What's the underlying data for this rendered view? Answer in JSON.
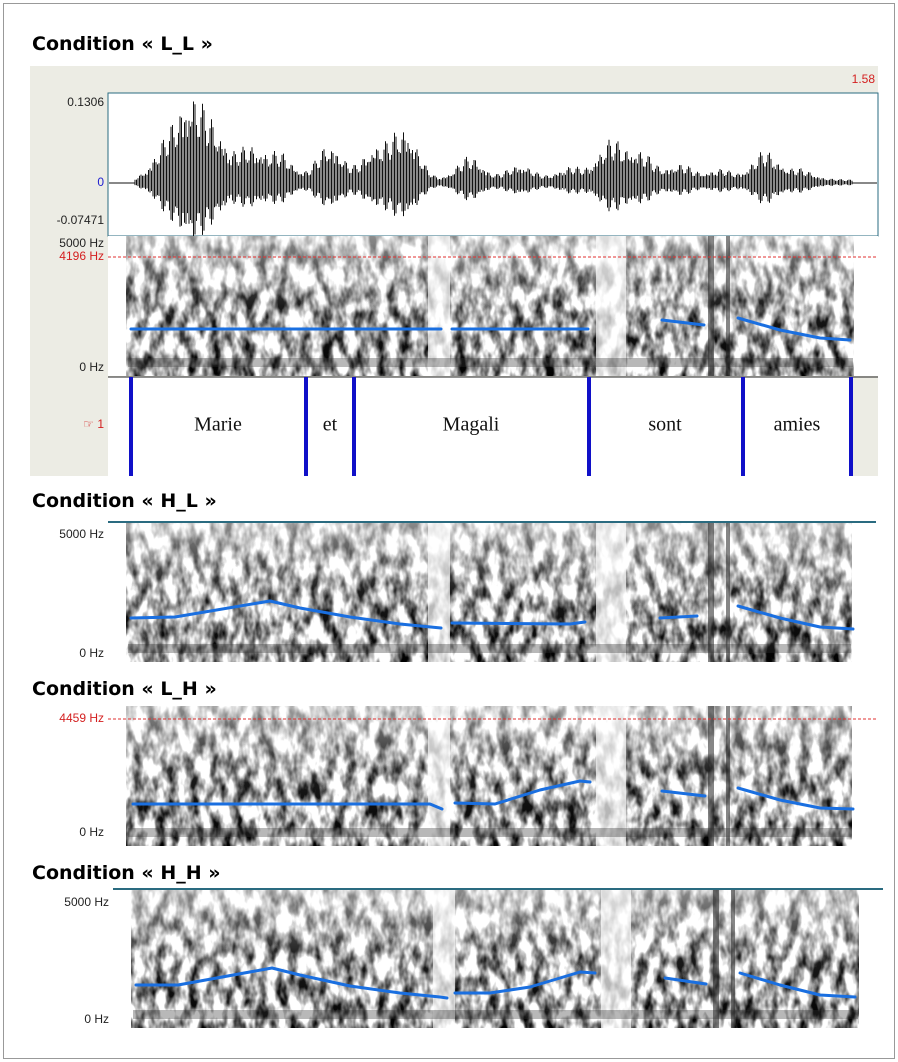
{
  "panels": [
    {
      "title": "Condition « L_L »",
      "time_end": "1.58",
      "waveform": {
        "max": "0.1306",
        "zero": "0",
        "min": "-0.07471"
      },
      "spectrogram": {
        "top": "5000 Hz",
        "cursor": "4196 Hz",
        "bottom": "0 Hz"
      },
      "tier": {
        "number": "1",
        "words": [
          "Marie",
          "et",
          "Magali",
          "sont",
          "amies"
        ]
      }
    },
    {
      "title": "Condition « H_L »",
      "spectrogram": {
        "top": "5000 Hz",
        "bottom": "0 Hz"
      }
    },
    {
      "title": "Condition « L_H »",
      "spectrogram": {
        "cursor": "4459 Hz",
        "bottom": "0 Hz"
      }
    },
    {
      "title": "Condition « H_H »",
      "spectrogram": {
        "top": "5000 Hz",
        "bottom": "0 Hz"
      }
    }
  ]
}
